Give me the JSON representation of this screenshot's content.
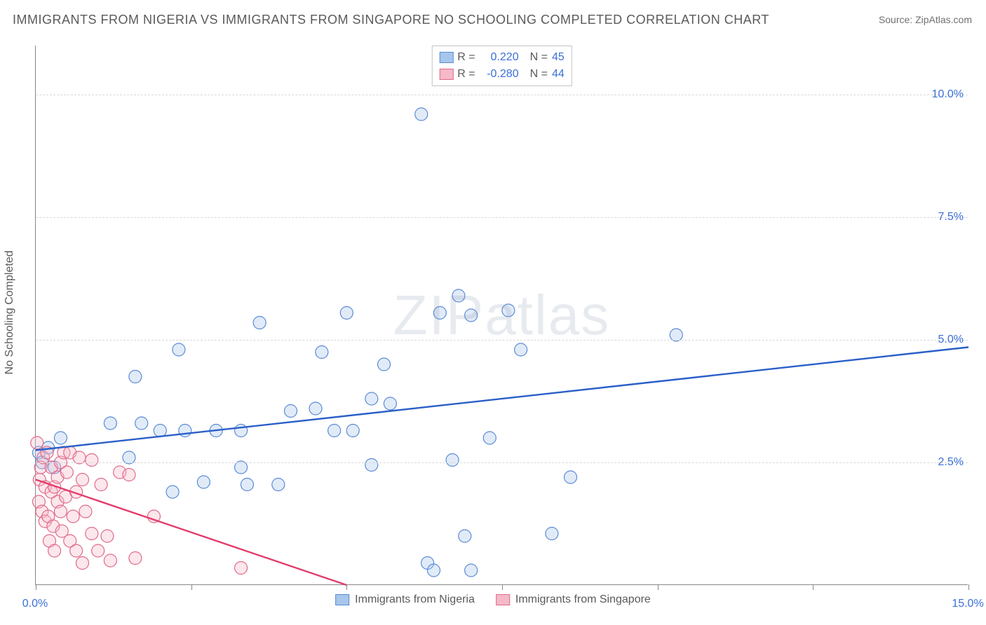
{
  "title": "IMMIGRANTS FROM NIGERIA VS IMMIGRANTS FROM SINGAPORE NO SCHOOLING COMPLETED CORRELATION CHART",
  "source": "Source: ZipAtlas.com",
  "ylabel": "No Schooling Completed",
  "watermark_a": "ZIP",
  "watermark_b": "atlas",
  "chart": {
    "type": "scatter",
    "background_color": "#ffffff",
    "grid_color": "#d8d8d8",
    "axis_color": "#888888",
    "marker_radius": 9,
    "marker_stroke_width": 1.2,
    "marker_fill_opacity": 0.35,
    "line_width": 2.4,
    "xlim": [
      0,
      15
    ],
    "ylim": [
      0,
      11
    ],
    "x_ticks": [
      0,
      2.5,
      5,
      7.5,
      10,
      12.5,
      15
    ],
    "x_tick_labels": {
      "0": "0.0%",
      "15": "15.0%"
    },
    "x_tick_label_color_left": "#3a6fd8",
    "x_tick_label_color_right": "#3a6fd8",
    "y_grid": [
      2.5,
      5.0,
      7.5,
      10.0
    ],
    "y_labels": [
      "2.5%",
      "5.0%",
      "7.5%",
      "10.0%"
    ],
    "y_label_color": "#3a6fd8",
    "legend_top": {
      "rows": [
        {
          "swatch_fill": "#a8c6ec",
          "swatch_stroke": "#5a8bd6",
          "r_label": "R =",
          "r_val": "0.220",
          "n_label": "N =",
          "n_val": "45"
        },
        {
          "swatch_fill": "#f5b9c8",
          "swatch_stroke": "#e06a8a",
          "r_label": "R =",
          "r_val": "-0.280",
          "n_label": "N =",
          "n_val": "44"
        }
      ],
      "text_color": "#5a5a5a",
      "value_color": "#3a6fd8"
    },
    "legend_bottom": {
      "items": [
        {
          "swatch_fill": "#a8c6ec",
          "swatch_stroke": "#5a8bd6",
          "label": "Immigrants from Nigeria"
        },
        {
          "swatch_fill": "#f5b9c8",
          "swatch_stroke": "#e06a8a",
          "label": "Immigrants from Singapore"
        }
      ]
    },
    "series": [
      {
        "name": "nigeria",
        "color_fill": "#a8c6ec",
        "color_stroke": "#5a8bd6",
        "trend": {
          "x1": 0,
          "y1": 2.75,
          "x2": 15,
          "y2": 4.85,
          "color": "#2a5fc9"
        },
        "points": [
          [
            0.05,
            2.7
          ],
          [
            0.1,
            2.5
          ],
          [
            0.2,
            2.8
          ],
          [
            0.3,
            2.4
          ],
          [
            0.4,
            3.0
          ],
          [
            1.2,
            3.3
          ],
          [
            1.5,
            2.6
          ],
          [
            1.6,
            4.25
          ],
          [
            1.7,
            3.3
          ],
          [
            2.0,
            3.15
          ],
          [
            2.2,
            1.9
          ],
          [
            2.3,
            4.8
          ],
          [
            2.4,
            3.15
          ],
          [
            2.7,
            2.1
          ],
          [
            2.9,
            3.15
          ],
          [
            3.3,
            2.4
          ],
          [
            3.3,
            3.15
          ],
          [
            3.4,
            2.05
          ],
          [
            3.6,
            5.35
          ],
          [
            3.9,
            2.05
          ],
          [
            4.1,
            3.55
          ],
          [
            4.5,
            3.6
          ],
          [
            4.6,
            4.75
          ],
          [
            4.8,
            3.15
          ],
          [
            5.0,
            5.55
          ],
          [
            5.1,
            3.15
          ],
          [
            5.4,
            2.45
          ],
          [
            5.4,
            3.8
          ],
          [
            5.6,
            4.5
          ],
          [
            5.7,
            3.7
          ],
          [
            6.3,
            0.45
          ],
          [
            6.4,
            0.3
          ],
          [
            6.5,
            5.55
          ],
          [
            6.7,
            2.55
          ],
          [
            6.8,
            5.9
          ],
          [
            6.9,
            1.0
          ],
          [
            7.0,
            0.3
          ],
          [
            7.0,
            5.5
          ],
          [
            7.3,
            3.0
          ],
          [
            7.6,
            5.6
          ],
          [
            7.8,
            4.8
          ],
          [
            8.3,
            1.05
          ],
          [
            8.6,
            2.2
          ],
          [
            10.3,
            5.1
          ],
          [
            6.2,
            9.6
          ]
        ]
      },
      {
        "name": "singapore",
        "color_fill": "#f5b9c8",
        "color_stroke": "#e06a8a",
        "trend": {
          "x1": 0,
          "y1": 2.15,
          "x2": 5.0,
          "y2": 0.0,
          "color": "#e23d6c"
        },
        "points": [
          [
            0.02,
            2.9
          ],
          [
            0.05,
            1.7
          ],
          [
            0.06,
            2.15
          ],
          [
            0.08,
            2.4
          ],
          [
            0.1,
            1.5
          ],
          [
            0.12,
            2.6
          ],
          [
            0.15,
            1.3
          ],
          [
            0.15,
            2.0
          ],
          [
            0.18,
            2.7
          ],
          [
            0.2,
            1.4
          ],
          [
            0.22,
            0.9
          ],
          [
            0.25,
            1.9
          ],
          [
            0.25,
            2.4
          ],
          [
            0.28,
            1.2
          ],
          [
            0.3,
            2.0
          ],
          [
            0.3,
            0.7
          ],
          [
            0.35,
            1.7
          ],
          [
            0.35,
            2.2
          ],
          [
            0.4,
            1.5
          ],
          [
            0.4,
            2.5
          ],
          [
            0.42,
            1.1
          ],
          [
            0.45,
            2.7
          ],
          [
            0.48,
            1.8
          ],
          [
            0.5,
            2.3
          ],
          [
            0.55,
            0.9
          ],
          [
            0.55,
            2.7
          ],
          [
            0.6,
            1.4
          ],
          [
            0.65,
            1.9
          ],
          [
            0.65,
            0.7
          ],
          [
            0.7,
            2.6
          ],
          [
            0.75,
            0.45
          ],
          [
            0.75,
            2.15
          ],
          [
            0.8,
            1.5
          ],
          [
            0.9,
            2.55
          ],
          [
            0.9,
            1.05
          ],
          [
            1.0,
            0.7
          ],
          [
            1.05,
            2.05
          ],
          [
            1.15,
            1.0
          ],
          [
            1.2,
            0.5
          ],
          [
            1.35,
            2.3
          ],
          [
            1.5,
            2.25
          ],
          [
            1.6,
            0.55
          ],
          [
            1.9,
            1.4
          ],
          [
            3.3,
            0.35
          ]
        ]
      }
    ]
  }
}
